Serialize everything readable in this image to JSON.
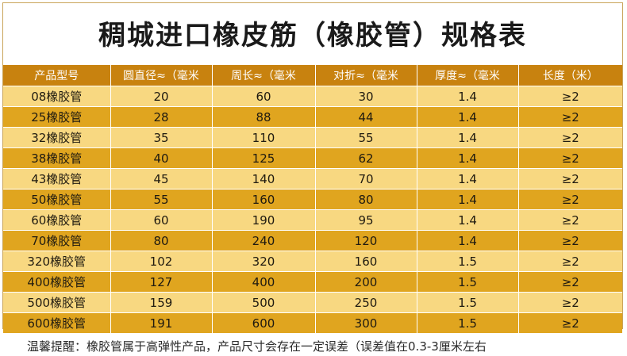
{
  "title": "稠城进口橡皮筋（橡胶管）规格表",
  "table": {
    "headers": [
      "产品型号",
      "圆直径≈（毫米",
      "周长≈（毫米",
      "对折≈（毫米",
      "厚度≈（毫米",
      "长度（米）"
    ],
    "rows": [
      [
        "08橡胶管",
        "20",
        "60",
        "30",
        "1.4",
        "≥2"
      ],
      [
        "25橡胶管",
        "28",
        "88",
        "44",
        "1.4",
        "≥2"
      ],
      [
        "32橡胶管",
        "35",
        "110",
        "55",
        "1.4",
        "≥2"
      ],
      [
        "38橡胶管",
        "40",
        "125",
        "62",
        "1.4",
        "≥2"
      ],
      [
        "43橡胶管",
        "45",
        "140",
        "70",
        "1.4",
        "≥2"
      ],
      [
        "50橡胶管",
        "55",
        "160",
        "80",
        "1.4",
        "≥2"
      ],
      [
        "60橡胶管",
        "60",
        "190",
        "95",
        "1.4",
        "≥2"
      ],
      [
        "70橡胶管",
        "80",
        "240",
        "120",
        "1.4",
        "≥2"
      ],
      [
        "320橡胶管",
        "102",
        "320",
        "160",
        "1.5",
        "≥2"
      ],
      [
        "400橡胶管",
        "127",
        "400",
        "200",
        "1.5",
        "≥2"
      ],
      [
        "500橡胶管",
        "159",
        "500",
        "250",
        "1.5",
        "≥2"
      ],
      [
        "600橡胶管",
        "191",
        "600",
        "300",
        "1.5",
        "≥2"
      ]
    ]
  },
  "note": "温馨提醒：橡胶管属于高弹性产品，产品尺寸会存在一定误差（误差值在0.3-3厘米左右",
  "colors": {
    "header_bg": "#c8820f",
    "row_dark": "#e0a51f",
    "row_light": "#f8d881"
  }
}
